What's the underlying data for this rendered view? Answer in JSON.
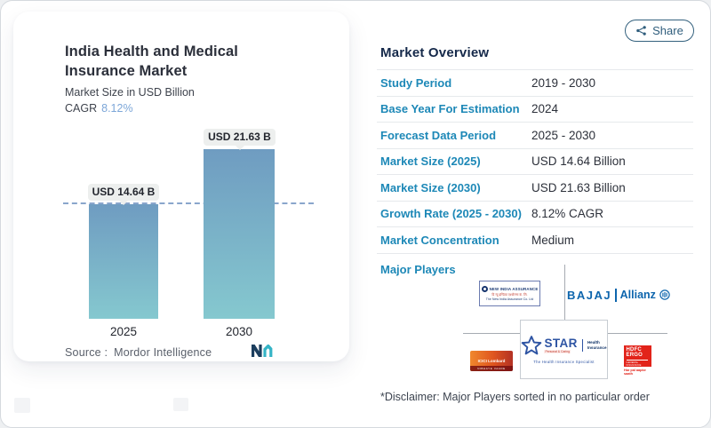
{
  "share": {
    "label": "Share"
  },
  "card": {
    "title": "India Health and Medical Insurance Market",
    "subtitle": "Market Size in USD Billion",
    "cagr_label": "CAGR",
    "cagr_value": "8.12%",
    "source_label": "Source :",
    "source_name": "Mordor Intelligence"
  },
  "chart_data": {
    "type": "bar",
    "title": "India Health and Medical Insurance Market",
    "subtitle": "Market Size in USD Billion",
    "unit": "USD Billion",
    "categories": [
      "2025",
      "2030"
    ],
    "values": [
      14.64,
      21.63
    ],
    "bar_labels": [
      "USD 14.64 B",
      "USD 21.63 B"
    ],
    "cagr_pct": 8.12,
    "ylim": [
      0,
      21.63
    ],
    "gridlines": false,
    "legend": false,
    "reference_line": {
      "y": 14.64,
      "style": "dashed"
    },
    "bar_gradient": [
      "#6f9cc1",
      "#85c8cf"
    ]
  },
  "overview": {
    "heading": "Market Overview",
    "rows": [
      {
        "label": "Study Period",
        "value": "2019 - 2030"
      },
      {
        "label": "Base Year For Estimation",
        "value": "2024"
      },
      {
        "label": "Forecast Data Period",
        "value": "2025 - 2030"
      },
      {
        "label": "Market Size (2025)",
        "value": "USD 14.64 Billion"
      },
      {
        "label": "Market Size (2030)",
        "value": "USD 21.63 Billion"
      },
      {
        "label": "Growth Rate (2025 - 2030)",
        "value": "8.12% CAGR"
      },
      {
        "label": "Market Concentration",
        "value": "Medium"
      }
    ],
    "major_players_label": "Major Players",
    "disclaimer": "*Disclaimer: Major Players sorted in no particular order"
  },
  "players": {
    "new_india": {
      "name": "NEW INDIA ASSURANCE",
      "line2": "दि न्यू इण्डिया एश्योरन्स कं. लि.",
      "line3": "The New India Assurance Co. Ltd"
    },
    "bajaj": {
      "part1": "BAJAJ",
      "part2": "Allianz"
    },
    "star": {
      "word": "STAR",
      "tagline": "Personal & Caring",
      "right1": "Health",
      "right2": "Insurance",
      "subtitle": "The Health Insurance Specialist"
    },
    "icici": {
      "name": "ICICI Lombard",
      "tagline": "NIBHAYE VAADE"
    },
    "hdfc": {
      "line1": "HDFC",
      "line2": "ERGO",
      "line3": "GENERAL INSURANCE",
      "tagline": "Har pal aapke saath"
    }
  },
  "colors": {
    "accent_label_blue": "#1d88b7",
    "heading_navy": "#15294a",
    "share_teal": "#2f5d7c",
    "cagr_blue": "#7ca6d8",
    "bar_top": "#6f9cc1",
    "bar_bottom": "#85c8cf",
    "dashed_line": "#8aa6cc",
    "badge_bg": "#edefee"
  }
}
